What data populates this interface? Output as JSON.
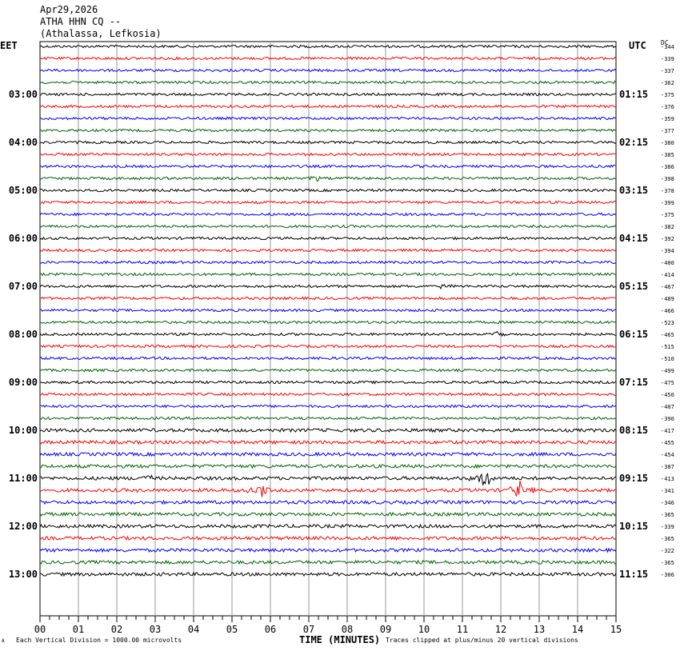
{
  "header": {
    "date": "Apr29,2026",
    "station": "ATHA HHN CQ --",
    "location": "(Athalassa, Lefkosia)"
  },
  "axes": {
    "left_timezone": "EET",
    "right_timezone": "UTC",
    "dc_label": "DC",
    "x_title": "TIME (MINUTES)"
  },
  "footer": {
    "scale_note": "Each Vertical Division = 1000.00 microvolts",
    "clip_note": "Traces clipped at plus/minus 20 vertical divisions",
    "mark": "A"
  },
  "colors": {
    "trace_cycle": [
      "#000000",
      "#ff0000",
      "#0000ff",
      "#006400"
    ],
    "grid": "#9a9a9a"
  },
  "chart_data": {
    "type": "line",
    "subtype": "helicorder",
    "x_range_minutes": [
      0,
      15
    ],
    "x_ticks": [
      "00",
      "01",
      "02",
      "03",
      "04",
      "05",
      "06",
      "07",
      "08",
      "09",
      "10",
      "11",
      "12",
      "13",
      "14",
      "15"
    ],
    "rows_per_hour": 4,
    "left_hour_labels": [
      "03:00",
      "04:00",
      "05:00",
      "06:00",
      "07:00",
      "08:00",
      "09:00",
      "10:00",
      "11:00",
      "12:00",
      "13:00"
    ],
    "right_hour_labels": [
      "01:15",
      "02:15",
      "03:15",
      "04:15",
      "05:15",
      "06:15",
      "07:15",
      "08:15",
      "09:15",
      "10:15",
      "11:15"
    ],
    "hour_label_first_row": 4,
    "dc_offsets": [
      "-344",
      "-339",
      "-337",
      "-362",
      "-375",
      "-376",
      "-359",
      "-377",
      "-380",
      "-385",
      "-386",
      "-398",
      "-378",
      "-399",
      "-375",
      "-382",
      "-392",
      "-394",
      "-400",
      "-414",
      "-467",
      "-489",
      "-466",
      "-523",
      "-465",
      "-515",
      "-510",
      "-499",
      "-475",
      "-450",
      "-407",
      "-390",
      "-417",
      "-455",
      "-454",
      "-387",
      "-413",
      "-341",
      "-346",
      "-365",
      "-339",
      "-365",
      "-322",
      "-365",
      "-306"
    ],
    "events": [
      {
        "row": 36,
        "minute": 11.6,
        "amplitude": "large"
      },
      {
        "row": 37,
        "minute": 5.7,
        "amplitude": "large"
      },
      {
        "row": 37,
        "minute": 12.5,
        "amplitude": "large"
      },
      {
        "row": 36,
        "minute": 2.8,
        "amplitude": "medium"
      },
      {
        "row": 24,
        "minute": 11.9,
        "amplitude": "medium"
      },
      {
        "row": 20,
        "minute": 10.5,
        "amplitude": "small"
      },
      {
        "row": 11,
        "minute": 7.2,
        "amplitude": "small"
      }
    ]
  }
}
